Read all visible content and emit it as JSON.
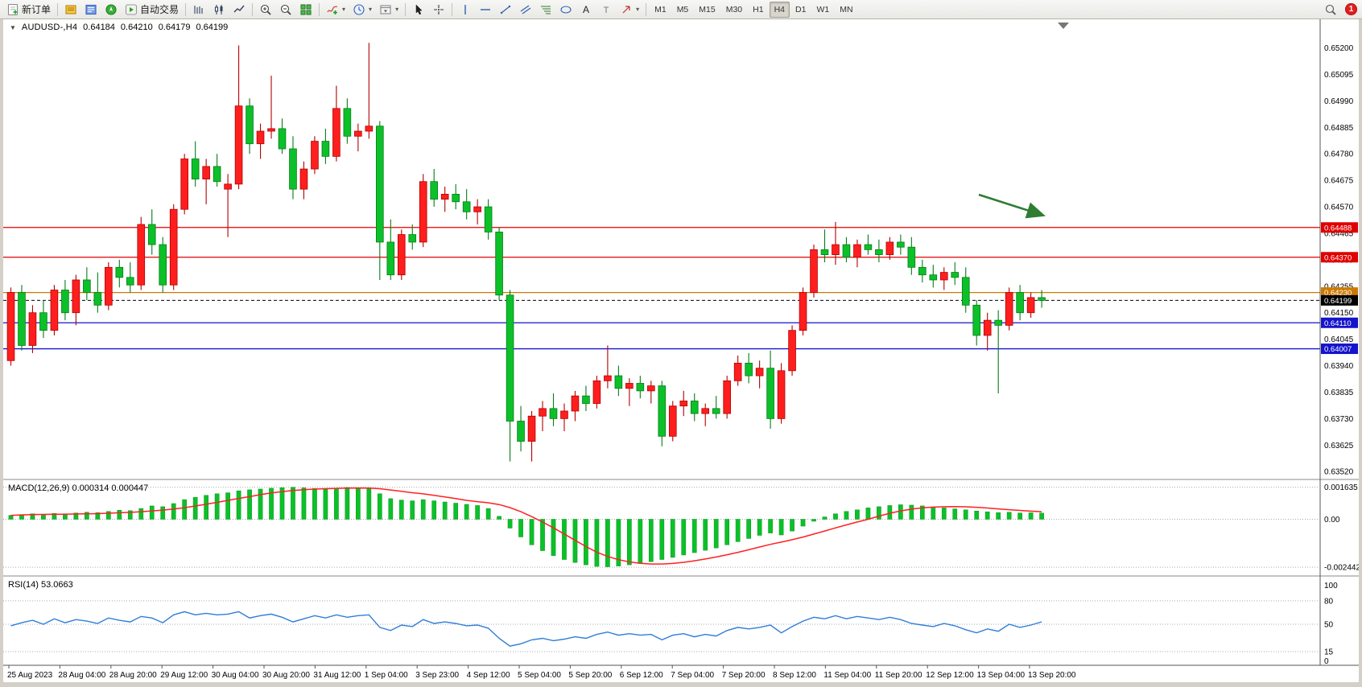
{
  "toolbar": {
    "groups": [
      [
        {
          "name": "new-order-button",
          "icon": "new-order-icon",
          "label": "新订单"
        }
      ],
      [
        {
          "name": "market-watch-button",
          "icon": "market-watch-icon"
        },
        {
          "name": "data-window-button",
          "icon": "data-window-icon"
        },
        {
          "name": "navigator-button",
          "icon": "navigator-icon"
        },
        {
          "name": "auto-trading-button",
          "icon": "play-icon",
          "label": "自动交易"
        }
      ],
      [
        {
          "name": "chart-bars-button",
          "icon": "chart-bars-icon"
        },
        {
          "name": "chart-candles-button",
          "icon": "chart-candles-icon"
        },
        {
          "name": "chart-line-button",
          "icon": "chart-line-icon"
        }
      ],
      [
        {
          "name": "zoom-in-button",
          "icon": "zoom-in-icon"
        },
        {
          "name": "zoom-out-button",
          "icon": "zoom-out-icon"
        },
        {
          "name": "tile-windows-button",
          "icon": "tile-windows-icon"
        }
      ],
      [
        {
          "name": "indicators-button",
          "icon": "indicators-icon",
          "dropdown": true
        },
        {
          "name": "periods-button",
          "icon": "clock-icon",
          "dropdown": true
        },
        {
          "name": "templates-button",
          "icon": "templates-icon",
          "dropdown": true
        }
      ],
      [
        {
          "name": "cursor-button",
          "icon": "cursor-icon"
        },
        {
          "name": "crosshair-button",
          "icon": "crosshair-icon"
        }
      ],
      [
        {
          "name": "vertical-line-button",
          "icon": "vline-icon"
        },
        {
          "name": "horizontal-line-button",
          "icon": "hline-icon"
        },
        {
          "name": "trendline-button",
          "icon": "trendline-icon"
        },
        {
          "name": "channel-button",
          "icon": "channel-icon"
        },
        {
          "name": "fibonacci-button",
          "icon": "fibonacci-icon"
        },
        {
          "name": "shapes-button",
          "icon": "shapes-icon"
        },
        {
          "name": "text-button",
          "icon": "text-icon"
        },
        {
          "name": "label-button",
          "icon": "label-icon"
        },
        {
          "name": "arrows-button",
          "icon": "arrows-icon",
          "dropdown": true
        }
      ]
    ],
    "timeframes": {
      "items": [
        "M1",
        "M5",
        "M15",
        "M30",
        "H1",
        "H4",
        "D1",
        "W1",
        "MN"
      ],
      "active": "H4"
    },
    "right": {
      "search_icon": "search-icon",
      "badge_count": "1"
    }
  },
  "chart_header": {
    "collapse_icon": "▼",
    "symbol": "AUDUSD-,H4",
    "open": "0.64184",
    "high": "0.64210",
    "low": "0.64179",
    "close": "0.64199"
  },
  "price_axis": {
    "labels": [
      "0.65200",
      "0.65095",
      "0.64990",
      "0.64885",
      "0.64780",
      "0.64675",
      "0.64570",
      "0.64465",
      "0.64360",
      "0.64255",
      "0.64150",
      "0.64045",
      "0.63940",
      "0.63835",
      "0.63730",
      "0.63625",
      "0.63520"
    ]
  },
  "price_lines": [
    {
      "name": "resistance-line-1",
      "value": 0.64488,
      "label": "0.64488",
      "color": "#e00000",
      "style": "solid"
    },
    {
      "name": "resistance-line-2",
      "value": 0.6437,
      "label": "0.64370",
      "color": "#e00000",
      "style": "solid"
    },
    {
      "name": "pivot-line",
      "value": 0.6423,
      "label": "0.64230",
      "color": "#cc7a00",
      "style": "solid"
    },
    {
      "name": "current-price-line",
      "value": 0.64199,
      "label": "0.64199",
      "color": "#000000",
      "style": "dash"
    },
    {
      "name": "support-line-1",
      "value": 0.6411,
      "label": "0.64110",
      "color": "#1414cc",
      "style": "solid"
    },
    {
      "name": "support-line-2",
      "value": 0.64007,
      "label": "0.64007",
      "color": "#1414cc",
      "style": "solid"
    }
  ],
  "time_axis": [
    "25 Aug 2023",
    "28 Aug 04:00",
    "28 Aug 20:00",
    "29 Aug 12:00",
    "30 Aug 04:00",
    "30 Aug 20:00",
    "31 Aug 12:00",
    "1 Sep 04:00",
    "3 Sep 23:00",
    "4 Sep 12:00",
    "5 Sep 04:00",
    "5 Sep 20:00",
    "6 Sep 12:00",
    "7 Sep 04:00",
    "7 Sep 20:00",
    "8 Sep 12:00",
    "11 Sep 04:00",
    "11 Sep 20:00",
    "12 Sep 12:00",
    "13 Sep 04:00",
    "13 Sep 20:00"
  ],
  "annotations": {
    "trend_arrow": {
      "color": "#2e7d32"
    }
  },
  "chart_data": [
    {
      "type": "candlestick",
      "title": "AUDUSD- H4",
      "up_color": "#ff1e1e",
      "down_color": "#0cc029",
      "ylim": [
        0.6352,
        0.652
      ],
      "candles": [
        [
          0.6396,
          0.6425,
          0.6394,
          0.6423
        ],
        [
          0.6423,
          0.6426,
          0.64,
          0.6402
        ],
        [
          0.6402,
          0.6418,
          0.6399,
          0.6415
        ],
        [
          0.6415,
          0.642,
          0.6405,
          0.6408
        ],
        [
          0.6408,
          0.6426,
          0.6406,
          0.6424
        ],
        [
          0.6424,
          0.6428,
          0.6412,
          0.6415
        ],
        [
          0.6415,
          0.643,
          0.641,
          0.6428
        ],
        [
          0.6428,
          0.6433,
          0.642,
          0.6423
        ],
        [
          0.6423,
          0.6431,
          0.6415,
          0.6418
        ],
        [
          0.6418,
          0.6435,
          0.6416,
          0.6433
        ],
        [
          0.6433,
          0.6436,
          0.6425,
          0.6429
        ],
        [
          0.6429,
          0.6435,
          0.6423,
          0.6426
        ],
        [
          0.6426,
          0.6453,
          0.6424,
          0.645
        ],
        [
          0.645,
          0.6456,
          0.6438,
          0.6442
        ],
        [
          0.6442,
          0.6445,
          0.6423,
          0.6426
        ],
        [
          0.6426,
          0.6458,
          0.6424,
          0.6456
        ],
        [
          0.6456,
          0.6478,
          0.6454,
          0.6476
        ],
        [
          0.6476,
          0.6483,
          0.6465,
          0.6468
        ],
        [
          0.6468,
          0.6476,
          0.6458,
          0.6473
        ],
        [
          0.6473,
          0.6478,
          0.6465,
          0.6467
        ],
        [
          0.6464,
          0.647,
          0.6445,
          0.6466
        ],
        [
          0.6466,
          0.6521,
          0.6464,
          0.6497
        ],
        [
          0.6497,
          0.65,
          0.6478,
          0.6482
        ],
        [
          0.6482,
          0.649,
          0.6476,
          0.6487
        ],
        [
          0.6487,
          0.6509,
          0.6484,
          0.6488
        ],
        [
          0.6488,
          0.6492,
          0.6478,
          0.648
        ],
        [
          0.648,
          0.6485,
          0.646,
          0.6464
        ],
        [
          0.6464,
          0.6475,
          0.646,
          0.6472
        ],
        [
          0.6472,
          0.6485,
          0.647,
          0.6483
        ],
        [
          0.6483,
          0.6488,
          0.6474,
          0.6477
        ],
        [
          0.6477,
          0.6505,
          0.6475,
          0.6496
        ],
        [
          0.6496,
          0.65,
          0.6482,
          0.6485
        ],
        [
          0.6485,
          0.649,
          0.6479,
          0.6487
        ],
        [
          0.6487,
          0.6522,
          0.6484,
          0.6489
        ],
        [
          0.6489,
          0.6491,
          0.6428,
          0.6443
        ],
        [
          0.6443,
          0.6452,
          0.6428,
          0.643
        ],
        [
          0.643,
          0.6448,
          0.6428,
          0.6446
        ],
        [
          0.6446,
          0.645,
          0.644,
          0.6443
        ],
        [
          0.6443,
          0.647,
          0.6441,
          0.6467
        ],
        [
          0.6467,
          0.6472,
          0.6457,
          0.646
        ],
        [
          0.646,
          0.6465,
          0.6455,
          0.6462
        ],
        [
          0.6462,
          0.6466,
          0.6456,
          0.6459
        ],
        [
          0.6459,
          0.6464,
          0.6452,
          0.6455
        ],
        [
          0.6455,
          0.646,
          0.645,
          0.6457
        ],
        [
          0.6457,
          0.646,
          0.6444,
          0.6447
        ],
        [
          0.6447,
          0.6449,
          0.642,
          0.6422
        ],
        [
          0.6422,
          0.6424,
          0.6356,
          0.6372
        ],
        [
          0.6372,
          0.6378,
          0.636,
          0.6364
        ],
        [
          0.6364,
          0.6376,
          0.6356,
          0.6374
        ],
        [
          0.6374,
          0.638,
          0.6368,
          0.6377
        ],
        [
          0.6377,
          0.6383,
          0.637,
          0.6373
        ],
        [
          0.6373,
          0.6379,
          0.6368,
          0.6376
        ],
        [
          0.6376,
          0.6384,
          0.6372,
          0.6382
        ],
        [
          0.6382,
          0.6386,
          0.6376,
          0.6379
        ],
        [
          0.6379,
          0.639,
          0.6377,
          0.6388
        ],
        [
          0.6388,
          0.6402,
          0.6385,
          0.639
        ],
        [
          0.639,
          0.6394,
          0.6382,
          0.6385
        ],
        [
          0.6385,
          0.6389,
          0.6378,
          0.6387
        ],
        [
          0.6387,
          0.639,
          0.6381,
          0.6384
        ],
        [
          0.6384,
          0.6388,
          0.6379,
          0.6386
        ],
        [
          0.6386,
          0.6388,
          0.6362,
          0.6366
        ],
        [
          0.6366,
          0.638,
          0.6364,
          0.6378
        ],
        [
          0.6378,
          0.6384,
          0.6374,
          0.638
        ],
        [
          0.638,
          0.6383,
          0.6372,
          0.6375
        ],
        [
          0.6375,
          0.6379,
          0.637,
          0.6377
        ],
        [
          0.6377,
          0.6382,
          0.6373,
          0.6375
        ],
        [
          0.6375,
          0.639,
          0.6373,
          0.6388
        ],
        [
          0.6388,
          0.6398,
          0.6386,
          0.6395
        ],
        [
          0.6395,
          0.6399,
          0.6387,
          0.639
        ],
        [
          0.639,
          0.6396,
          0.6385,
          0.6393
        ],
        [
          0.6393,
          0.64,
          0.6369,
          0.6373
        ],
        [
          0.6373,
          0.6395,
          0.6371,
          0.6392
        ],
        [
          0.6392,
          0.641,
          0.639,
          0.6408
        ],
        [
          0.6408,
          0.6425,
          0.6406,
          0.6423
        ],
        [
          0.6423,
          0.6442,
          0.6421,
          0.644
        ],
        [
          0.644,
          0.6448,
          0.6435,
          0.6438
        ],
        [
          0.6438,
          0.6451,
          0.6434,
          0.6442
        ],
        [
          0.6442,
          0.6445,
          0.6435,
          0.6437
        ],
        [
          0.6437,
          0.6444,
          0.6433,
          0.6442
        ],
        [
          0.6442,
          0.6446,
          0.6438,
          0.644
        ],
        [
          0.644,
          0.6444,
          0.6435,
          0.6438
        ],
        [
          0.6438,
          0.6445,
          0.6436,
          0.6443
        ],
        [
          0.6443,
          0.6446,
          0.6438,
          0.6441
        ],
        [
          0.6441,
          0.6445,
          0.643,
          0.6433
        ],
        [
          0.6433,
          0.6436,
          0.6427,
          0.643
        ],
        [
          0.643,
          0.6434,
          0.6425,
          0.6428
        ],
        [
          0.6428,
          0.6433,
          0.6424,
          0.6431
        ],
        [
          0.6431,
          0.6435,
          0.6426,
          0.6429
        ],
        [
          0.6429,
          0.6433,
          0.6415,
          0.6418
        ],
        [
          0.6418,
          0.642,
          0.6402,
          0.6406
        ],
        [
          0.6406,
          0.6415,
          0.64,
          0.6412
        ],
        [
          0.6412,
          0.6416,
          0.6383,
          0.641
        ],
        [
          0.641,
          0.6425,
          0.6408,
          0.6423
        ],
        [
          0.6423,
          0.6426,
          0.6412,
          0.6415
        ],
        [
          0.6415,
          0.6423,
          0.6413,
          0.6421
        ],
        [
          0.6421,
          0.6424,
          0.6417,
          0.64199
        ]
      ]
    },
    {
      "type": "bar",
      "name": "MACD",
      "header_label": "MACD(12,26,9)",
      "value_main": "0.000314",
      "value_signal": "0.000447",
      "bar_color": "#0cc029",
      "signal_color": "#ff2020",
      "axis_labels": {
        "upper": "0.001635",
        "zero": "0.00",
        "lower": "-0.002442"
      },
      "axis_values": {
        "upper": 0.001635,
        "zero": 0,
        "lower": -0.002442
      },
      "values": [
        0.0002,
        0.00024,
        0.00028,
        0.00026,
        0.0003,
        0.00028,
        0.00032,
        0.00036,
        0.00034,
        0.0004,
        0.00046,
        0.00044,
        0.00055,
        0.00068,
        0.00064,
        0.0008,
        0.001,
        0.00112,
        0.00122,
        0.0013,
        0.00135,
        0.00145,
        0.0015,
        0.00154,
        0.00158,
        0.00161,
        0.00163,
        0.0016,
        0.00157,
        0.00154,
        0.00158,
        0.00162,
        0.0016,
        0.00157,
        0.0013,
        0.00105,
        0.00098,
        0.00094,
        0.001,
        0.00094,
        0.00088,
        0.00082,
        0.00076,
        0.0007,
        0.00055,
        0.00015,
        -0.00045,
        -0.0009,
        -0.0013,
        -0.0016,
        -0.00185,
        -0.00205,
        -0.0022,
        -0.00232,
        -0.0024,
        -0.00242,
        -0.00238,
        -0.00232,
        -0.00225,
        -0.00216,
        -0.00205,
        -0.00194,
        -0.00182,
        -0.0017,
        -0.00158,
        -0.00146,
        -0.0013,
        -0.00114,
        -0.00098,
        -0.00082,
        -0.0007,
        -0.0008,
        -0.0006,
        -0.00035,
        -0.0001,
        0.00012,
        0.00028,
        0.0004,
        0.00048,
        0.00058,
        0.00064,
        0.0007,
        0.00074,
        0.00072,
        0.00068,
        0.00063,
        0.00058,
        0.00053,
        0.00048,
        0.00042,
        0.00038,
        0.00034,
        0.00036,
        0.00032,
        0.00033,
        0.000314
      ]
    },
    {
      "type": "line",
      "name": "RSI",
      "header_label": "RSI(14)",
      "value": "53.0663",
      "line_color": "#2f7ed8",
      "axis_labels": [
        {
          "text": "100",
          "value": 100,
          "dashed": false
        },
        {
          "text": "80",
          "value": 80,
          "dashed": true
        },
        {
          "text": "50",
          "value": 50,
          "dashed": true
        },
        {
          "text": "15",
          "value": 15,
          "dashed": true
        },
        {
          "text": "0",
          "value": 0,
          "dashed": false
        }
      ],
      "values": [
        48,
        52,
        55,
        50,
        57,
        52,
        56,
        54,
        51,
        58,
        55,
        53,
        60,
        58,
        52,
        62,
        66,
        62,
        64,
        62,
        63,
        66,
        58,
        61,
        63,
        59,
        53,
        57,
        61,
        58,
        62,
        59,
        61,
        62,
        46,
        42,
        49,
        47,
        56,
        51,
        53,
        51,
        48,
        49,
        45,
        32,
        22,
        25,
        30,
        32,
        29,
        31,
        34,
        32,
        37,
        40,
        36,
        38,
        36,
        37,
        30,
        36,
        38,
        34,
        37,
        35,
        42,
        46,
        44,
        46,
        49,
        39,
        47,
        54,
        59,
        57,
        61,
        57,
        60,
        58,
        56,
        59,
        56,
        51,
        49,
        47,
        51,
        48,
        43,
        39,
        44,
        41,
        50,
        46,
        49,
        53.07
      ]
    }
  ]
}
